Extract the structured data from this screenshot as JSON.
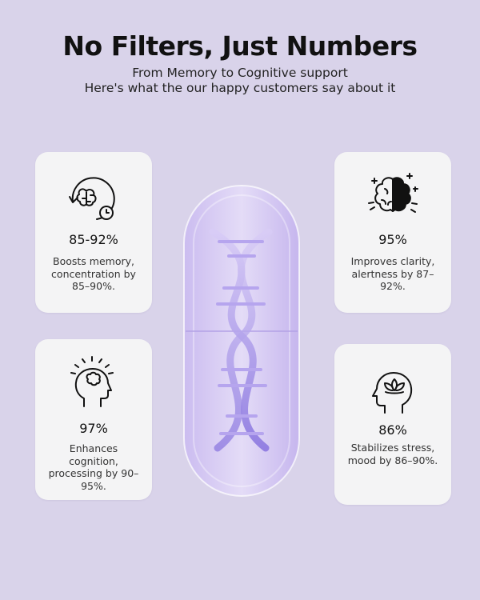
{
  "header": {
    "title": "No Filters, Just Numbers",
    "subtitle_line1": "From Memory to Cognitive support",
    "subtitle_line2": "Here's what the our happy customers say about it"
  },
  "cards": [
    {
      "icon": "brain-clock-icon",
      "percent": "85-92%",
      "description": "Boosts memory, concentration by 85–90%."
    },
    {
      "icon": "half-brain-sparkle-icon",
      "percent": "95%",
      "description": "Improves clarity, alertness by 87–92%."
    },
    {
      "icon": "head-brain-rays-icon",
      "percent": "97%",
      "description": "Enhances cognition, processing by 90–95%."
    },
    {
      "icon": "head-lotus-icon",
      "percent": "86%",
      "description": "Stabilizes stress, mood by 86–90%."
    }
  ],
  "capsule": {
    "icon": "dna-capsule-icon",
    "tint": "#b9a6e8"
  },
  "colors": {
    "background": "#d9d3ea",
    "card": "#f4f4f5",
    "text": "#111111"
  }
}
